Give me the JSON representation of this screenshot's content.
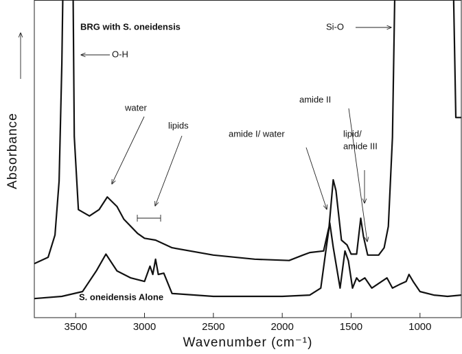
{
  "chart_data": {
    "type": "line",
    "x_label": "Wavenumber (cm⁻¹)",
    "y_label": "Absorbance",
    "xlim": [
      3800,
      700
    ],
    "ylim": [
      0,
      100
    ],
    "xticks": [
      3500,
      3000,
      2500,
      2000,
      1500,
      1000
    ],
    "annotations": [
      "BRG with S. oneidensis",
      "S. oneidensis Alone",
      "O-H",
      "Si-O",
      "water",
      "lipids",
      "amide I/ water",
      "amide II",
      "lipid/",
      "amide III"
    ],
    "series": [
      {
        "name": "BRG with S. oneidensis",
        "color": "#111111",
        "x": [
          3800,
          3700,
          3650,
          3620,
          3600,
          3590,
          3520,
          3510,
          3480,
          3400,
          3330,
          3270,
          3200,
          3150,
          3050,
          3000,
          2920,
          2800,
          2500,
          2200,
          1950,
          1850,
          1800,
          1700,
          1660,
          1630,
          1610,
          1570,
          1530,
          1500,
          1460,
          1430,
          1410,
          1380,
          1300,
          1260,
          1230,
          1200,
          1180,
          760,
          740,
          700
        ],
        "values": [
          17,
          19,
          26,
          43,
          80,
          110,
          110,
          57,
          34,
          32,
          34,
          38,
          35,
          31,
          26.5,
          25,
          24.4,
          22,
          19.7,
          18.4,
          18,
          19.7,
          20.5,
          21,
          28.7,
          43.4,
          40,
          24.4,
          22.9,
          20,
          20,
          31.3,
          25.5,
          19.7,
          19.7,
          22,
          28.7,
          56.8,
          110,
          110,
          63,
          63
        ]
      },
      {
        "name": "S. oneidensis Alone",
        "color": "#111111",
        "x": [
          3800,
          3600,
          3450,
          3350,
          3280,
          3200,
          3100,
          3000,
          2960,
          2940,
          2920,
          2900,
          2860,
          2800,
          2500,
          2000,
          1800,
          1720,
          1680,
          1655,
          1630,
          1580,
          1545,
          1520,
          1490,
          1460,
          1440,
          1400,
          1350,
          1240,
          1200,
          1150,
          1100,
          1080,
          1050,
          1000,
          900,
          800,
          700
        ],
        "values": [
          6,
          6.7,
          8.2,
          14.7,
          20,
          14.7,
          12.5,
          11.4,
          16.2,
          13.6,
          18.4,
          13.6,
          14,
          7.6,
          6.7,
          6.7,
          7.1,
          9.3,
          22.2,
          29.8,
          22.2,
          9.3,
          21,
          17.9,
          9.3,
          12.5,
          11.4,
          12.5,
          9.3,
          12.5,
          9.3,
          10.4,
          11.4,
          13.6,
          11.4,
          8.2,
          7.1,
          6.7,
          7.1
        ]
      }
    ]
  }
}
